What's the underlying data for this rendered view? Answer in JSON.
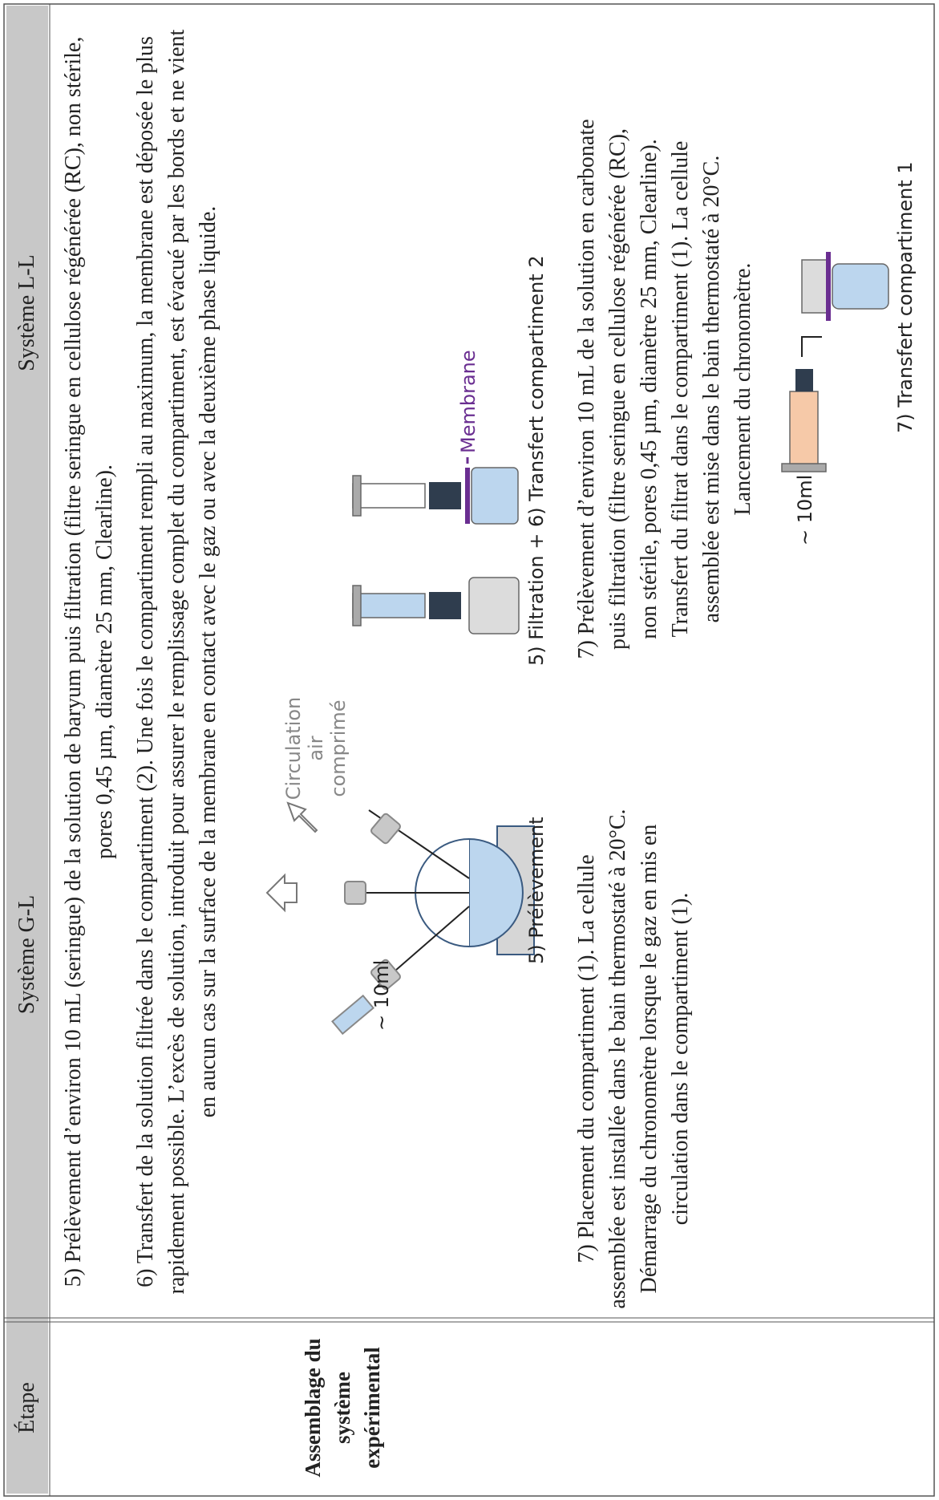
{
  "table": {
    "header": [
      "Étape",
      "Système G-L",
      "Système L-L"
    ],
    "row_label": "Assemblage du système expérimental",
    "paragraphs": {
      "step5": "5) Prélèvement d’environ 10 mL (seringue) de la solution de baryum puis filtration (filtre seringue en cellulose régénérée (RC), non stérile, pores 0,45 µm, diamètre 25 mm, Clearline).",
      "step6": "6) Transfert de la solution filtrée dans le compartiment (2). Une fois le compartiment rempli au maximum, la membrane est déposée le plus rapidement possible. L’excès de solution, introduit pour assurer le remplissage complet du compartiment, est évacué par les bords et ne vient en aucun cas sur la surface de la membrane en contact avec le gaz ou avec la deuxième phase liquide.",
      "step7_gl": "7) Placement du compartiment (1). La cellule assemblée est installée dans le bain thermostaté à 20°C. Démarrage du chronomètre lorsque le gaz en mis en circulation dans le compartiment (1).",
      "step7_ll": "7) Prélèvement d’environ 10 mL de la solution en carbonate puis filtration (filtre seringue en cellulose régénérée (RC), non stérile, pores 0,45 µm, diamètre 25 mm, Clearline). Transfert du filtrat dans le compartiment (1). La cellule assemblée est mise dans le bain thermostaté à 20°C. Lancement du chronomètre."
    },
    "diagram_labels": {
      "gl_volume": "~ 10ml",
      "gl_air": "Circulation air comprimé",
      "gl_caption": "5) Prélèvement",
      "ll_membrane": "Membrane",
      "ll_caption_filtration": "5) Filtration + 6) Transfert compartiment 2",
      "ll_volume": "~ 10ml",
      "ll_caption_transfer": "7) Transfert compartiment 1"
    }
  }
}
